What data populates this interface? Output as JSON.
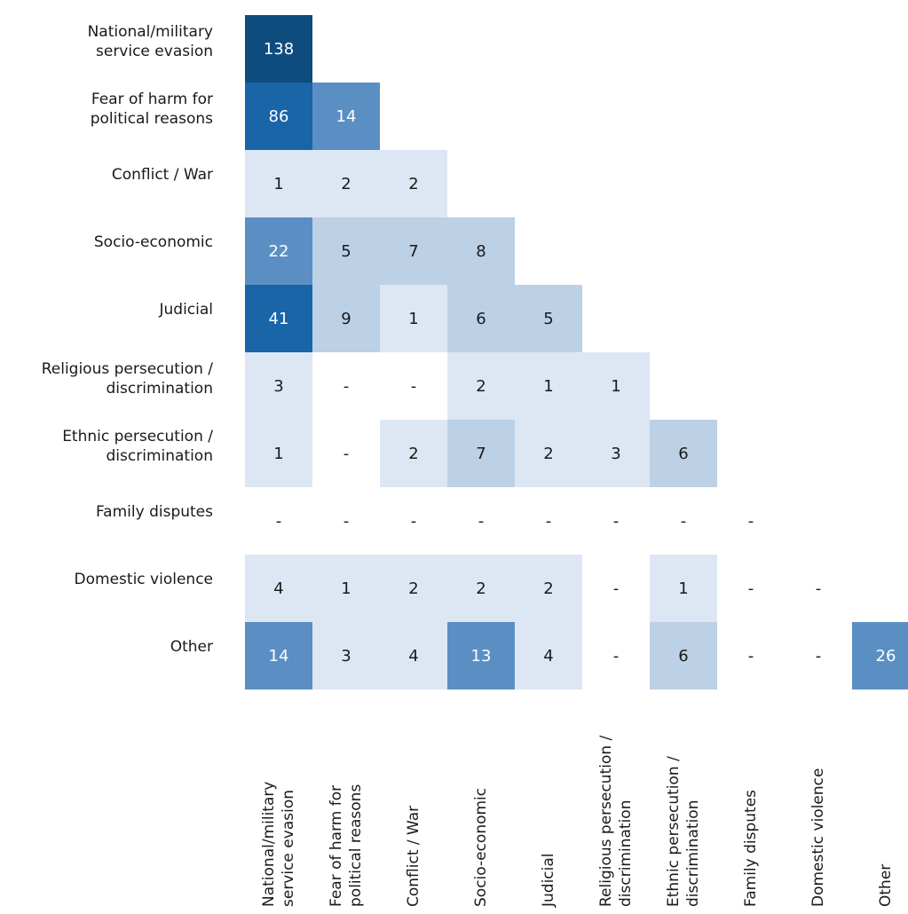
{
  "chart_data": {
    "type": "heatmap",
    "title": "",
    "row_labels": [
      "National/military\nservice evasion",
      "Fear of harm for\npolitical reasons",
      "Conflict / War",
      "Socio-economic",
      "Judicial",
      "Religious persecution /\ndiscrimination",
      "Ethnic persecution /\ndiscrimination",
      "Family disputes",
      "Domestic violence",
      "Other"
    ],
    "column_labels": [
      "National/military\nservice evasion",
      "Fear of harm for\npolitical reasons",
      "Conflict / War",
      "Socio-economic",
      "Judicial",
      "Religious persecution /\ndiscrimination",
      "Ethnic persecution /\ndiscrimination",
      "Family disputes",
      "Domestic violence",
      "Other"
    ],
    "values": [
      [
        "138"
      ],
      [
        "86",
        "14"
      ],
      [
        "1",
        "2",
        "2"
      ],
      [
        "22",
        "5",
        "7",
        "8"
      ],
      [
        "41",
        "9",
        "1",
        "6",
        "5"
      ],
      [
        "3",
        "-",
        "-",
        "2",
        "1",
        "1"
      ],
      [
        "1",
        "-",
        "2",
        "7",
        "2",
        "3",
        "6"
      ],
      [
        "-",
        "-",
        "-",
        "-",
        "-",
        "-",
        "-",
        "-"
      ],
      [
        "4",
        "1",
        "2",
        "2",
        "2",
        "-",
        "1",
        "-",
        "-"
      ],
      [
        "14",
        "3",
        "4",
        "13",
        "4",
        "-",
        "6",
        "-",
        "-",
        "26"
      ]
    ],
    "color_scale": [
      "#dce7f3",
      "#bcd0e6",
      "#5b8fc4",
      "#1a64a8",
      "#0e4c7e"
    ]
  }
}
